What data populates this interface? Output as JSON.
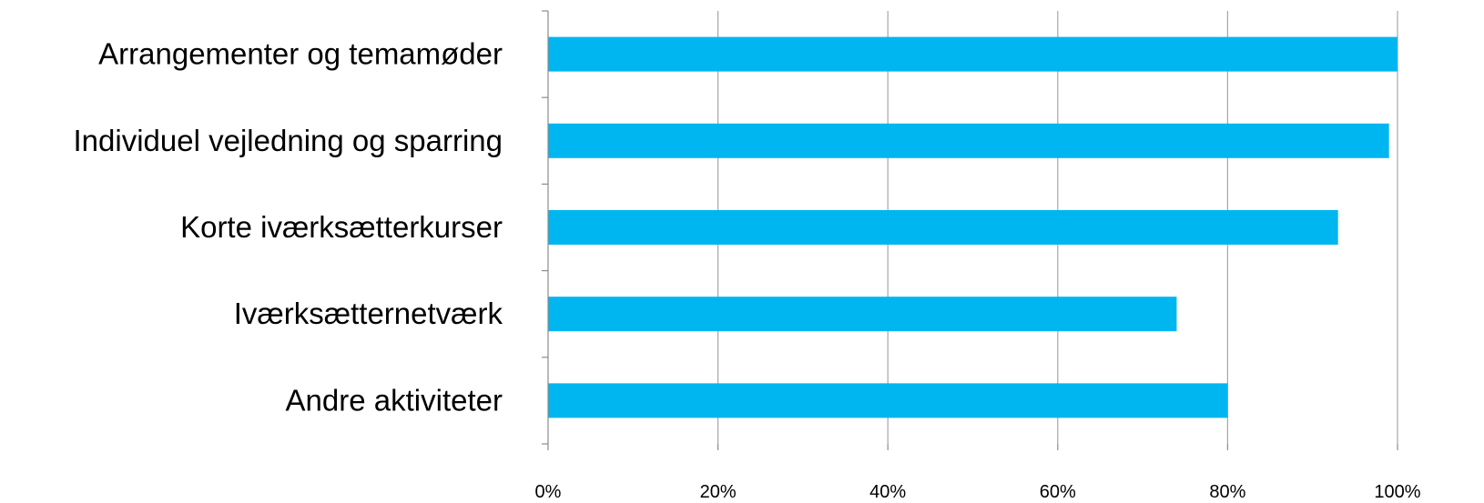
{
  "chart_data": {
    "type": "bar",
    "orientation": "horizontal",
    "categories": [
      "Arrangementer og temamøder",
      "Individuel vejledning og sparring",
      "Korte iværksætterkurser",
      "Iværksætternetværk",
      "Andre aktiviteter"
    ],
    "values": [
      100,
      99,
      93,
      74,
      80
    ],
    "x_ticks": [
      "0%",
      "20%",
      "40%",
      "60%",
      "80%",
      "100%"
    ],
    "xlim": [
      0,
      100
    ],
    "grid": true,
    "bar_color": "#00b6f0",
    "title": "",
    "xlabel": "",
    "ylabel": ""
  }
}
